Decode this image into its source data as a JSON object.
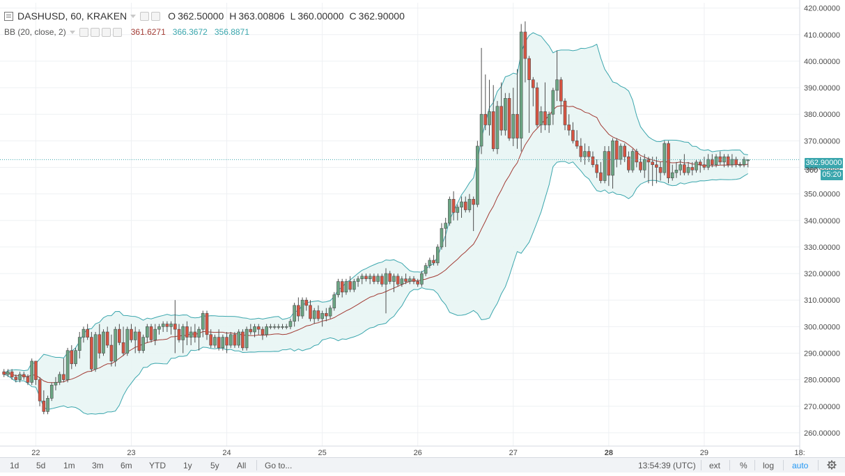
{
  "header": {
    "symbol": "DASHUSD, 60, KRAKEN",
    "ohlc": {
      "o_label": "O",
      "o": "362.50000",
      "h_label": "H",
      "h": "363.00806",
      "l_label": "L",
      "l": "360.00000",
      "c_label": "C",
      "c": "362.90000"
    }
  },
  "indicator": {
    "label": "BB (20, close, 2)",
    "basis": "361.6271",
    "upper": "366.3672",
    "lower": "356.8871"
  },
  "price_tags": {
    "last_price": "362.90000",
    "bb_value": "360",
    "countdown": "05:20"
  },
  "bottom_toolbar": {
    "ranges": [
      "1d",
      "5d",
      "1m",
      "3m",
      "6m",
      "YTD",
      "1y",
      "5y",
      "All"
    ],
    "goto_label": "Go to...",
    "clock": "13:54:39 (UTC)",
    "ext_label": "ext",
    "percent_label": "%",
    "log_label": "log",
    "auto_label": "auto"
  },
  "colors": {
    "up": "#6ba583",
    "down": "#d75442",
    "bb_band": "#3aa6ad",
    "bb_basis": "#a23b34",
    "bb_fill": "#e8f5f4",
    "last_price_tag": "#3aa6ad",
    "countdown_tag": "#3aa6ad",
    "auto_text": "#2196f3"
  },
  "icons": {
    "settings": "gear-icon",
    "symbol": "symbol-box-icon",
    "dropdown": "caret-down-icon"
  },
  "chart_data": {
    "type": "candlestick",
    "title": "DASHUSD, 60, KRAKEN",
    "ylim": [
      255,
      422
    ],
    "y_ticks": [
      "260.00000",
      "270.00000",
      "280.00000",
      "290.00000",
      "300.00000",
      "310.00000",
      "320.00000",
      "330.00000",
      "340.00000",
      "350.00000",
      "360.00000",
      "370.00000",
      "380.00000",
      "390.00000",
      "400.00000",
      "410.00000",
      "420.00000"
    ],
    "x_labels": [
      "22",
      "23",
      "24",
      "25",
      "26",
      "27",
      "28",
      "29",
      "18:"
    ],
    "x_range_hours": [
      -9,
      192
    ],
    "candles": [
      [
        -8,
        283,
        284,
        281,
        282
      ],
      [
        -7,
        282,
        284,
        281,
        283
      ],
      [
        -6,
        283,
        284,
        280,
        281
      ],
      [
        -5,
        281,
        282,
        279,
        280
      ],
      [
        -4,
        280,
        283,
        279,
        282
      ],
      [
        -3,
        282,
        283,
        280,
        281
      ],
      [
        -2,
        281,
        282,
        278,
        279
      ],
      [
        -1,
        279,
        288,
        278,
        287
      ],
      [
        0,
        287,
        287,
        278,
        280
      ],
      [
        1,
        280,
        281,
        270,
        272
      ],
      [
        2,
        272,
        276,
        267,
        268
      ],
      [
        3,
        268,
        274,
        267,
        273
      ],
      [
        4,
        273,
        279,
        272,
        278
      ],
      [
        5,
        278,
        281,
        276,
        279
      ],
      [
        6,
        279,
        283,
        278,
        282
      ],
      [
        7,
        282,
        288,
        279,
        280
      ],
      [
        8,
        280,
        292,
        279,
        291
      ],
      [
        9,
        291,
        293,
        284,
        286
      ],
      [
        10,
        286,
        292,
        285,
        291
      ],
      [
        11,
        291,
        298,
        288,
        296
      ],
      [
        12,
        296,
        300,
        294,
        299
      ],
      [
        13,
        299,
        301,
        295,
        296
      ],
      [
        14,
        296,
        298,
        283,
        284
      ],
      [
        15,
        284,
        298,
        283,
        297
      ],
      [
        16,
        297,
        301,
        288,
        290
      ],
      [
        17,
        290,
        299,
        289,
        298
      ],
      [
        18,
        298,
        300,
        292,
        293
      ],
      [
        19,
        293,
        297,
        285,
        287
      ],
      [
        20,
        287,
        300,
        285,
        299
      ],
      [
        21,
        299,
        301,
        293,
        294
      ],
      [
        22,
        294,
        300,
        289,
        290
      ],
      [
        23,
        290,
        300,
        289,
        299
      ],
      [
        24,
        299,
        301,
        294,
        295
      ],
      [
        25,
        295,
        300,
        290,
        298
      ],
      [
        26,
        298,
        299,
        290,
        291
      ],
      [
        27,
        291,
        297,
        290,
        296
      ],
      [
        28,
        296,
        301,
        294,
        300
      ],
      [
        29,
        300,
        301,
        294,
        295
      ],
      [
        30,
        295,
        301,
        293,
        299
      ],
      [
        31,
        299,
        301,
        297,
        300
      ],
      [
        32,
        300,
        302,
        298,
        301
      ],
      [
        33,
        301,
        302,
        298,
        300
      ],
      [
        34,
        300,
        302,
        297,
        301
      ],
      [
        35,
        301,
        310,
        290,
        299
      ],
      [
        36,
        299,
        301,
        294,
        295
      ],
      [
        37,
        295,
        301,
        290,
        300
      ],
      [
        38,
        300,
        302,
        293,
        296
      ],
      [
        39,
        296,
        300,
        293,
        298
      ],
      [
        40,
        298,
        301,
        294,
        296
      ],
      [
        41,
        296,
        300,
        291,
        299
      ],
      [
        42,
        299,
        306,
        296,
        305
      ],
      [
        43,
        305,
        306,
        295,
        297
      ],
      [
        44,
        297,
        299,
        292,
        293
      ],
      [
        45,
        293,
        297,
        292,
        296
      ],
      [
        46,
        296,
        299,
        291,
        292
      ],
      [
        47,
        292,
        297,
        291,
        296
      ],
      [
        48,
        296,
        298,
        290,
        293
      ],
      [
        49,
        293,
        298,
        292,
        297
      ],
      [
        50,
        297,
        298,
        292,
        293
      ],
      [
        51,
        293,
        299,
        292,
        298
      ],
      [
        52,
        298,
        299,
        291,
        292
      ],
      [
        53,
        292,
        300,
        291,
        299
      ],
      [
        54,
        299,
        301,
        297,
        298
      ],
      [
        55,
        298,
        301,
        296,
        300
      ],
      [
        56,
        300,
        301,
        297,
        299
      ],
      [
        57,
        299,
        300,
        295,
        297
      ],
      [
        58,
        297,
        301,
        296,
        300
      ],
      [
        59,
        300,
        301,
        299,
        300
      ],
      [
        60,
        300,
        301,
        299,
        300
      ],
      [
        61,
        300,
        301,
        299,
        300
      ],
      [
        62,
        300,
        301,
        299,
        300
      ],
      [
        63,
        300,
        301,
        299,
        300
      ],
      [
        64,
        300,
        303,
        299,
        302
      ],
      [
        65,
        302,
        309,
        300,
        308
      ],
      [
        66,
        308,
        311,
        302,
        304
      ],
      [
        67,
        304,
        311,
        303,
        310
      ],
      [
        68,
        310,
        311,
        306,
        308
      ],
      [
        69,
        308,
        310,
        302,
        303
      ],
      [
        70,
        303,
        307,
        301,
        306
      ],
      [
        71,
        306,
        308,
        302,
        303
      ],
      [
        72,
        303,
        306,
        300,
        305
      ],
      [
        73,
        305,
        307,
        302,
        304
      ],
      [
        74,
        304,
        308,
        303,
        307
      ],
      [
        75,
        307,
        313,
        306,
        312
      ],
      [
        76,
        312,
        318,
        311,
        317
      ],
      [
        77,
        317,
        318,
        311,
        313
      ],
      [
        78,
        313,
        318,
        312,
        317
      ],
      [
        79,
        317,
        319,
        313,
        314
      ],
      [
        80,
        314,
        318,
        313,
        317
      ],
      [
        81,
        317,
        319,
        315,
        318
      ],
      [
        82,
        318,
        320,
        316,
        319
      ],
      [
        83,
        319,
        320,
        317,
        318
      ],
      [
        84,
        318,
        320,
        316,
        319
      ],
      [
        85,
        319,
        320,
        316,
        317
      ],
      [
        86,
        317,
        320,
        316,
        319
      ],
      [
        87,
        319,
        320,
        315,
        316
      ],
      [
        88,
        316,
        322,
        305,
        320
      ],
      [
        89,
        320,
        321,
        316,
        317
      ],
      [
        90,
        317,
        320,
        313,
        319
      ],
      [
        91,
        319,
        320,
        315,
        316
      ],
      [
        92,
        316,
        319,
        315,
        318
      ],
      [
        93,
        318,
        320,
        316,
        317
      ],
      [
        94,
        317,
        319,
        316,
        318
      ],
      [
        95,
        318,
        319,
        316,
        317
      ],
      [
        96,
        317,
        318,
        315,
        316
      ],
      [
        97,
        316,
        321,
        315,
        320
      ],
      [
        98,
        320,
        324,
        319,
        323
      ],
      [
        99,
        323,
        326,
        322,
        325
      ],
      [
        100,
        325,
        327,
        323,
        324
      ],
      [
        101,
        324,
        331,
        323,
        330
      ],
      [
        102,
        330,
        339,
        329,
        337
      ],
      [
        103,
        337,
        341,
        330,
        339
      ],
      [
        104,
        339,
        349,
        338,
        348
      ],
      [
        105,
        348,
        351,
        340,
        343
      ],
      [
        106,
        343,
        346,
        340,
        345
      ],
      [
        107,
        345,
        349,
        341,
        347
      ],
      [
        108,
        347,
        349,
        343,
        344
      ],
      [
        109,
        344,
        350,
        343,
        348
      ],
      [
        110,
        348,
        349,
        336,
        346
      ],
      [
        111,
        346,
        370,
        345,
        368
      ],
      [
        112,
        368,
        405,
        365,
        380
      ],
      [
        113,
        380,
        395,
        374,
        376
      ],
      [
        114,
        376,
        393,
        372,
        381
      ],
      [
        115,
        381,
        391,
        366,
        367
      ],
      [
        116,
        367,
        385,
        365,
        383
      ],
      [
        117,
        383,
        392,
        372,
        374
      ],
      [
        118,
        374,
        388,
        372,
        386
      ],
      [
        119,
        386,
        388,
        370,
        371
      ],
      [
        120,
        371,
        390,
        368,
        380
      ],
      [
        121,
        380,
        397,
        367,
        371
      ],
      [
        122,
        371,
        414,
        366,
        411
      ],
      [
        123,
        411,
        415,
        392,
        401
      ],
      [
        124,
        401,
        402,
        373,
        393
      ],
      [
        125,
        393,
        394,
        383,
        390
      ],
      [
        126,
        390,
        392,
        375,
        376
      ],
      [
        127,
        376,
        383,
        373,
        381
      ],
      [
        128,
        381,
        392,
        374,
        376
      ],
      [
        129,
        376,
        381,
        373,
        380
      ],
      [
        130,
        380,
        390,
        376,
        389
      ],
      [
        131,
        389,
        404,
        385,
        393
      ],
      [
        132,
        393,
        394,
        380,
        385
      ],
      [
        133,
        385,
        386,
        374,
        376
      ],
      [
        134,
        376,
        380,
        372,
        374
      ],
      [
        135,
        374,
        377,
        369,
        370
      ],
      [
        136,
        370,
        374,
        367,
        368
      ],
      [
        137,
        368,
        371,
        362,
        364
      ],
      [
        138,
        364,
        369,
        361,
        366
      ],
      [
        139,
        366,
        368,
        362,
        364
      ],
      [
        140,
        364,
        366,
        360,
        361
      ],
      [
        141,
        361,
        363,
        356,
        358
      ],
      [
        142,
        358,
        362,
        354,
        355
      ],
      [
        143,
        355,
        368,
        354,
        366
      ],
      [
        144,
        366,
        368,
        353,
        357
      ],
      [
        145,
        357,
        371,
        352,
        370
      ],
      [
        146,
        370,
        371,
        360,
        363
      ],
      [
        147,
        363,
        369,
        361,
        368
      ],
      [
        148,
        368,
        369,
        362,
        364
      ],
      [
        149,
        364,
        366,
        358,
        359
      ],
      [
        150,
        359,
        367,
        358,
        366
      ],
      [
        151,
        366,
        367,
        360,
        362
      ],
      [
        152,
        362,
        364,
        358,
        359
      ],
      [
        153,
        359,
        365,
        356,
        363
      ],
      [
        154,
        363,
        364,
        354,
        362
      ],
      [
        155,
        362,
        364,
        353,
        361
      ],
      [
        156,
        361,
        364,
        354,
        360
      ],
      [
        157,
        360,
        362,
        355,
        358
      ],
      [
        158,
        358,
        370,
        357,
        369
      ],
      [
        159,
        369,
        370,
        354,
        356
      ],
      [
        160,
        356,
        361,
        355,
        358
      ],
      [
        161,
        358,
        362,
        356,
        359
      ],
      [
        162,
        359,
        363,
        357,
        361
      ],
      [
        163,
        361,
        365,
        357,
        358
      ],
      [
        164,
        358,
        362,
        357,
        360
      ],
      [
        165,
        360,
        362,
        357,
        359
      ],
      [
        166,
        359,
        363,
        358,
        362
      ],
      [
        167,
        362,
        363,
        358,
        361
      ],
      [
        168,
        361,
        364,
        359,
        360
      ],
      [
        169,
        360,
        365,
        359,
        363
      ],
      [
        170,
        363,
        365,
        360,
        361
      ],
      [
        171,
        361,
        365,
        360,
        364
      ],
      [
        172,
        364,
        366,
        361,
        362
      ],
      [
        173,
        362,
        365,
        360,
        364
      ],
      [
        174,
        364,
        365,
        360,
        361
      ],
      [
        175,
        361,
        365,
        360,
        363
      ],
      [
        176,
        363,
        364,
        360,
        361
      ],
      [
        177,
        361,
        362,
        360,
        361
      ],
      [
        178,
        361,
        364,
        360,
        363
      ],
      [
        179,
        362.5,
        363.00806,
        360,
        362.9
      ]
    ]
  }
}
